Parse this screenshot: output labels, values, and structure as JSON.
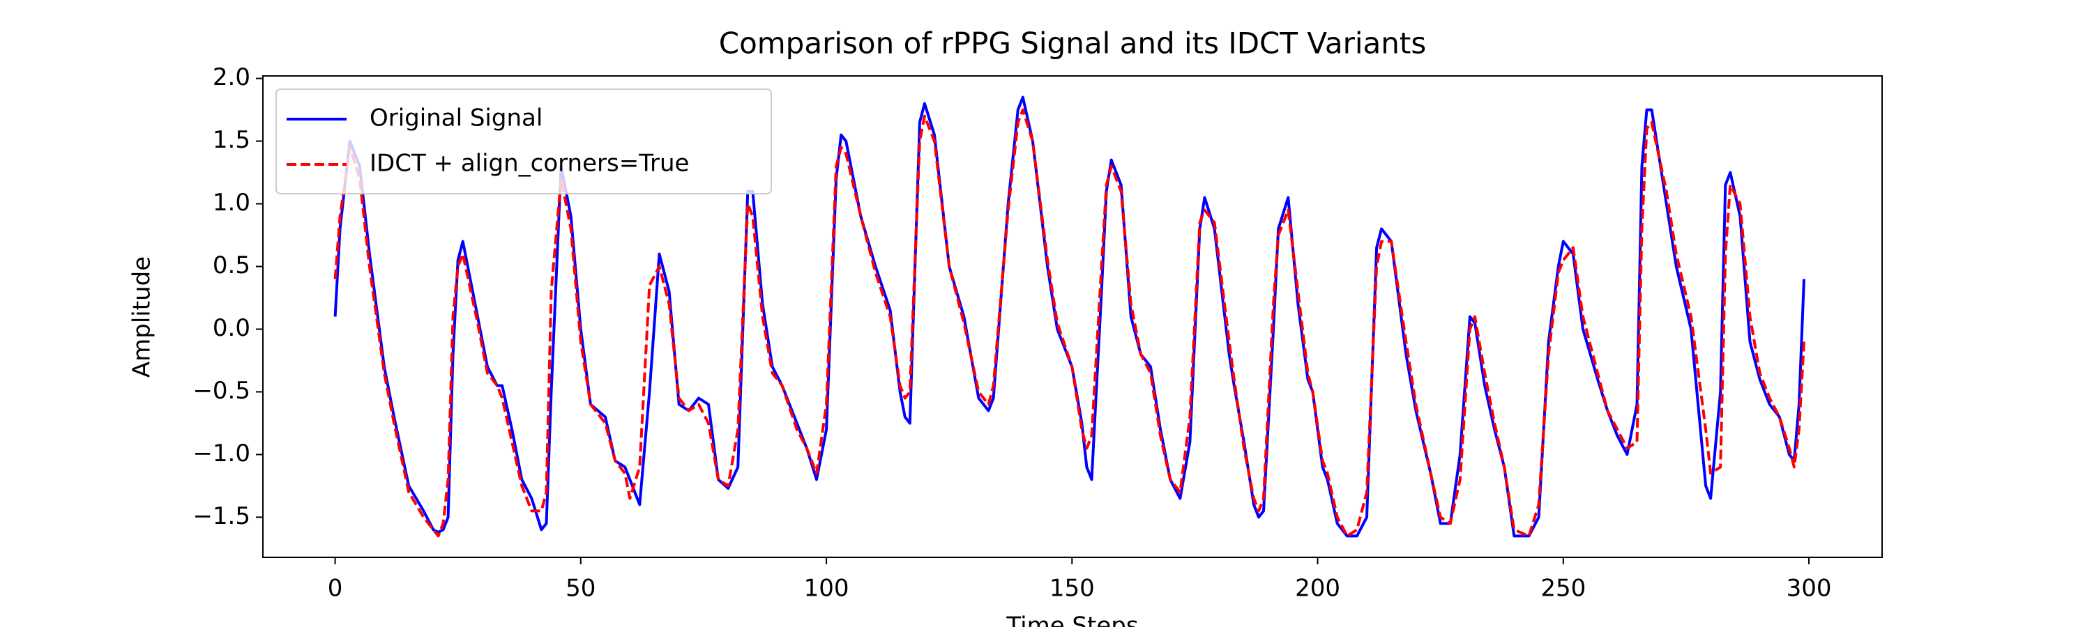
{
  "chart_data": {
    "type": "line",
    "title": "Comparison of rPPG Signal and its IDCT Variants",
    "x_label": "Time Steps",
    "y_label": "Amplitude",
    "xlim": [
      -14.7,
      314.9
    ],
    "ylim": [
      -1.82,
      2.02
    ],
    "xticks": [
      0,
      50,
      100,
      150,
      200,
      250,
      300
    ],
    "yticks": [
      {
        "value": -1.5,
        "label": "−1.5"
      },
      {
        "value": -1.0,
        "label": "−1.0"
      },
      {
        "value": -0.5,
        "label": "−0.5"
      },
      {
        "value": 0.0,
        "label": "0.0"
      },
      {
        "value": 0.5,
        "label": "0.5"
      },
      {
        "value": 1.0,
        "label": "1.0"
      },
      {
        "value": 1.5,
        "label": "1.5"
      },
      {
        "value": 2.0,
        "label": "2.0"
      }
    ],
    "legend": "upper left",
    "x": [
      0,
      1,
      3,
      5,
      7,
      10,
      12,
      15,
      18,
      20,
      21,
      22,
      23,
      24,
      25,
      26,
      29,
      31,
      33,
      34,
      36,
      38,
      40,
      42,
      43,
      44,
      46,
      48,
      50,
      52,
      55,
      57,
      59,
      60,
      62,
      64,
      66,
      68,
      70,
      72,
      74,
      76,
      78,
      80,
      82,
      84,
      85,
      87,
      89,
      91,
      94,
      96,
      98,
      100,
      102,
      103,
      104,
      107,
      110,
      113,
      115,
      116,
      117,
      119,
      120,
      122,
      125,
      128,
      131,
      133,
      134,
      137,
      139,
      140,
      142,
      145,
      147,
      150,
      152,
      153,
      154,
      156,
      157,
      158,
      160,
      162,
      164,
      166,
      168,
      170,
      172,
      174,
      176,
      177,
      179,
      182,
      183,
      185,
      187,
      188,
      189,
      191,
      192,
      194,
      196,
      198,
      199,
      201,
      202,
      204,
      206,
      208,
      210,
      212,
      213,
      215,
      218,
      220,
      223,
      225,
      227,
      229,
      231,
      232,
      234,
      236,
      238,
      240,
      243,
      245,
      247,
      249,
      250,
      252,
      254,
      257,
      259,
      261,
      263,
      265,
      266,
      267,
      268,
      271,
      273,
      276,
      279,
      280,
      282,
      283,
      284,
      286,
      288,
      290,
      292,
      294,
      296,
      297,
      298,
      299
    ],
    "series": [
      {
        "name": "Original Signal",
        "color": "#0000ff",
        "dash": false,
        "values": [
          0.1,
          0.8,
          1.5,
          1.3,
          0.6,
          -0.3,
          -0.7,
          -1.25,
          -1.45,
          -1.6,
          -1.62,
          -1.6,
          -1.5,
          -0.2,
          0.55,
          0.7,
          0.1,
          -0.3,
          -0.45,
          -0.45,
          -0.8,
          -1.2,
          -1.35,
          -1.6,
          -1.55,
          -0.5,
          1.3,
          0.9,
          0.0,
          -0.6,
          -0.7,
          -1.05,
          -1.1,
          -1.2,
          -1.4,
          -0.5,
          0.6,
          0.3,
          -0.6,
          -0.65,
          -0.55,
          -0.6,
          -1.2,
          -1.27,
          -1.1,
          1.1,
          1.1,
          0.2,
          -0.3,
          -0.45,
          -0.75,
          -0.95,
          -1.2,
          -0.8,
          1.2,
          1.55,
          1.5,
          0.9,
          0.5,
          0.15,
          -0.5,
          -0.7,
          -0.75,
          1.65,
          1.8,
          1.55,
          0.5,
          0.1,
          -0.55,
          -0.65,
          -0.55,
          1.0,
          1.75,
          1.85,
          1.5,
          0.5,
          0.0,
          -0.3,
          -0.75,
          -1.1,
          -1.2,
          0.3,
          1.1,
          1.35,
          1.15,
          0.1,
          -0.2,
          -0.3,
          -0.8,
          -1.2,
          -1.35,
          -0.9,
          0.8,
          1.05,
          0.8,
          -0.2,
          -0.45,
          -0.9,
          -1.4,
          -1.5,
          -1.45,
          0.0,
          0.8,
          1.05,
          0.2,
          -0.4,
          -0.5,
          -1.1,
          -1.2,
          -1.55,
          -1.65,
          -1.65,
          -1.5,
          0.65,
          0.8,
          0.7,
          -0.2,
          -0.65,
          -1.15,
          -1.55,
          -1.55,
          -1.0,
          0.1,
          0.05,
          -0.45,
          -0.8,
          -1.1,
          -1.65,
          -1.65,
          -1.5,
          -0.1,
          0.5,
          0.7,
          0.6,
          0.0,
          -0.4,
          -0.65,
          -0.85,
          -1.0,
          -0.6,
          1.3,
          1.75,
          1.75,
          1.0,
          0.5,
          0.0,
          -1.25,
          -1.35,
          -0.5,
          1.15,
          1.25,
          0.9,
          -0.1,
          -0.4,
          -0.6,
          -0.7,
          -1.0,
          -1.05,
          -0.6,
          0.4
        ]
      },
      {
        "name": "IDCT + align_corners=True",
        "color": "#ff0000",
        "dash": true,
        "values": [
          0.4,
          0.9,
          1.45,
          1.2,
          0.5,
          -0.35,
          -0.75,
          -1.3,
          -1.5,
          -1.6,
          -1.65,
          -1.55,
          -1.2,
          0.1,
          0.5,
          0.6,
          0.05,
          -0.35,
          -0.45,
          -0.55,
          -0.9,
          -1.25,
          -1.45,
          -1.45,
          -1.3,
          0.3,
          1.2,
          0.8,
          -0.1,
          -0.6,
          -0.75,
          -1.05,
          -1.15,
          -1.35,
          -1.1,
          0.35,
          0.5,
          0.2,
          -0.55,
          -0.65,
          -0.6,
          -0.75,
          -1.2,
          -1.25,
          -0.8,
          1.0,
          0.9,
          0.1,
          -0.35,
          -0.45,
          -0.8,
          -0.95,
          -1.15,
          -0.6,
          1.3,
          1.45,
          1.4,
          0.9,
          0.45,
          0.1,
          -0.45,
          -0.55,
          -0.5,
          1.5,
          1.7,
          1.5,
          0.5,
          0.05,
          -0.5,
          -0.6,
          -0.45,
          0.95,
          1.65,
          1.75,
          1.5,
          0.55,
          0.05,
          -0.3,
          -0.8,
          -0.95,
          -0.85,
          0.5,
          1.15,
          1.3,
          1.1,
          0.2,
          -0.2,
          -0.35,
          -0.85,
          -1.2,
          -1.3,
          -0.7,
          0.85,
          0.95,
          0.85,
          -0.1,
          -0.4,
          -0.95,
          -1.35,
          -1.45,
          -1.35,
          0.2,
          0.75,
          0.95,
          0.3,
          -0.35,
          -0.5,
          -1.05,
          -1.15,
          -1.5,
          -1.65,
          -1.6,
          -1.3,
          0.5,
          0.7,
          0.7,
          -0.1,
          -0.6,
          -1.15,
          -1.5,
          -1.55,
          -1.2,
          0.0,
          0.1,
          -0.35,
          -0.75,
          -1.1,
          -1.6,
          -1.65,
          -1.4,
          -0.2,
          0.45,
          0.55,
          0.65,
          0.1,
          -0.35,
          -0.65,
          -0.8,
          -0.95,
          -0.9,
          0.8,
          1.6,
          1.65,
          1.1,
          0.6,
          0.1,
          -0.8,
          -1.15,
          -1.1,
          0.6,
          1.15,
          1.0,
          0.1,
          -0.35,
          -0.55,
          -0.7,
          -0.95,
          -1.1,
          -0.8,
          -0.1
        ]
      }
    ]
  }
}
